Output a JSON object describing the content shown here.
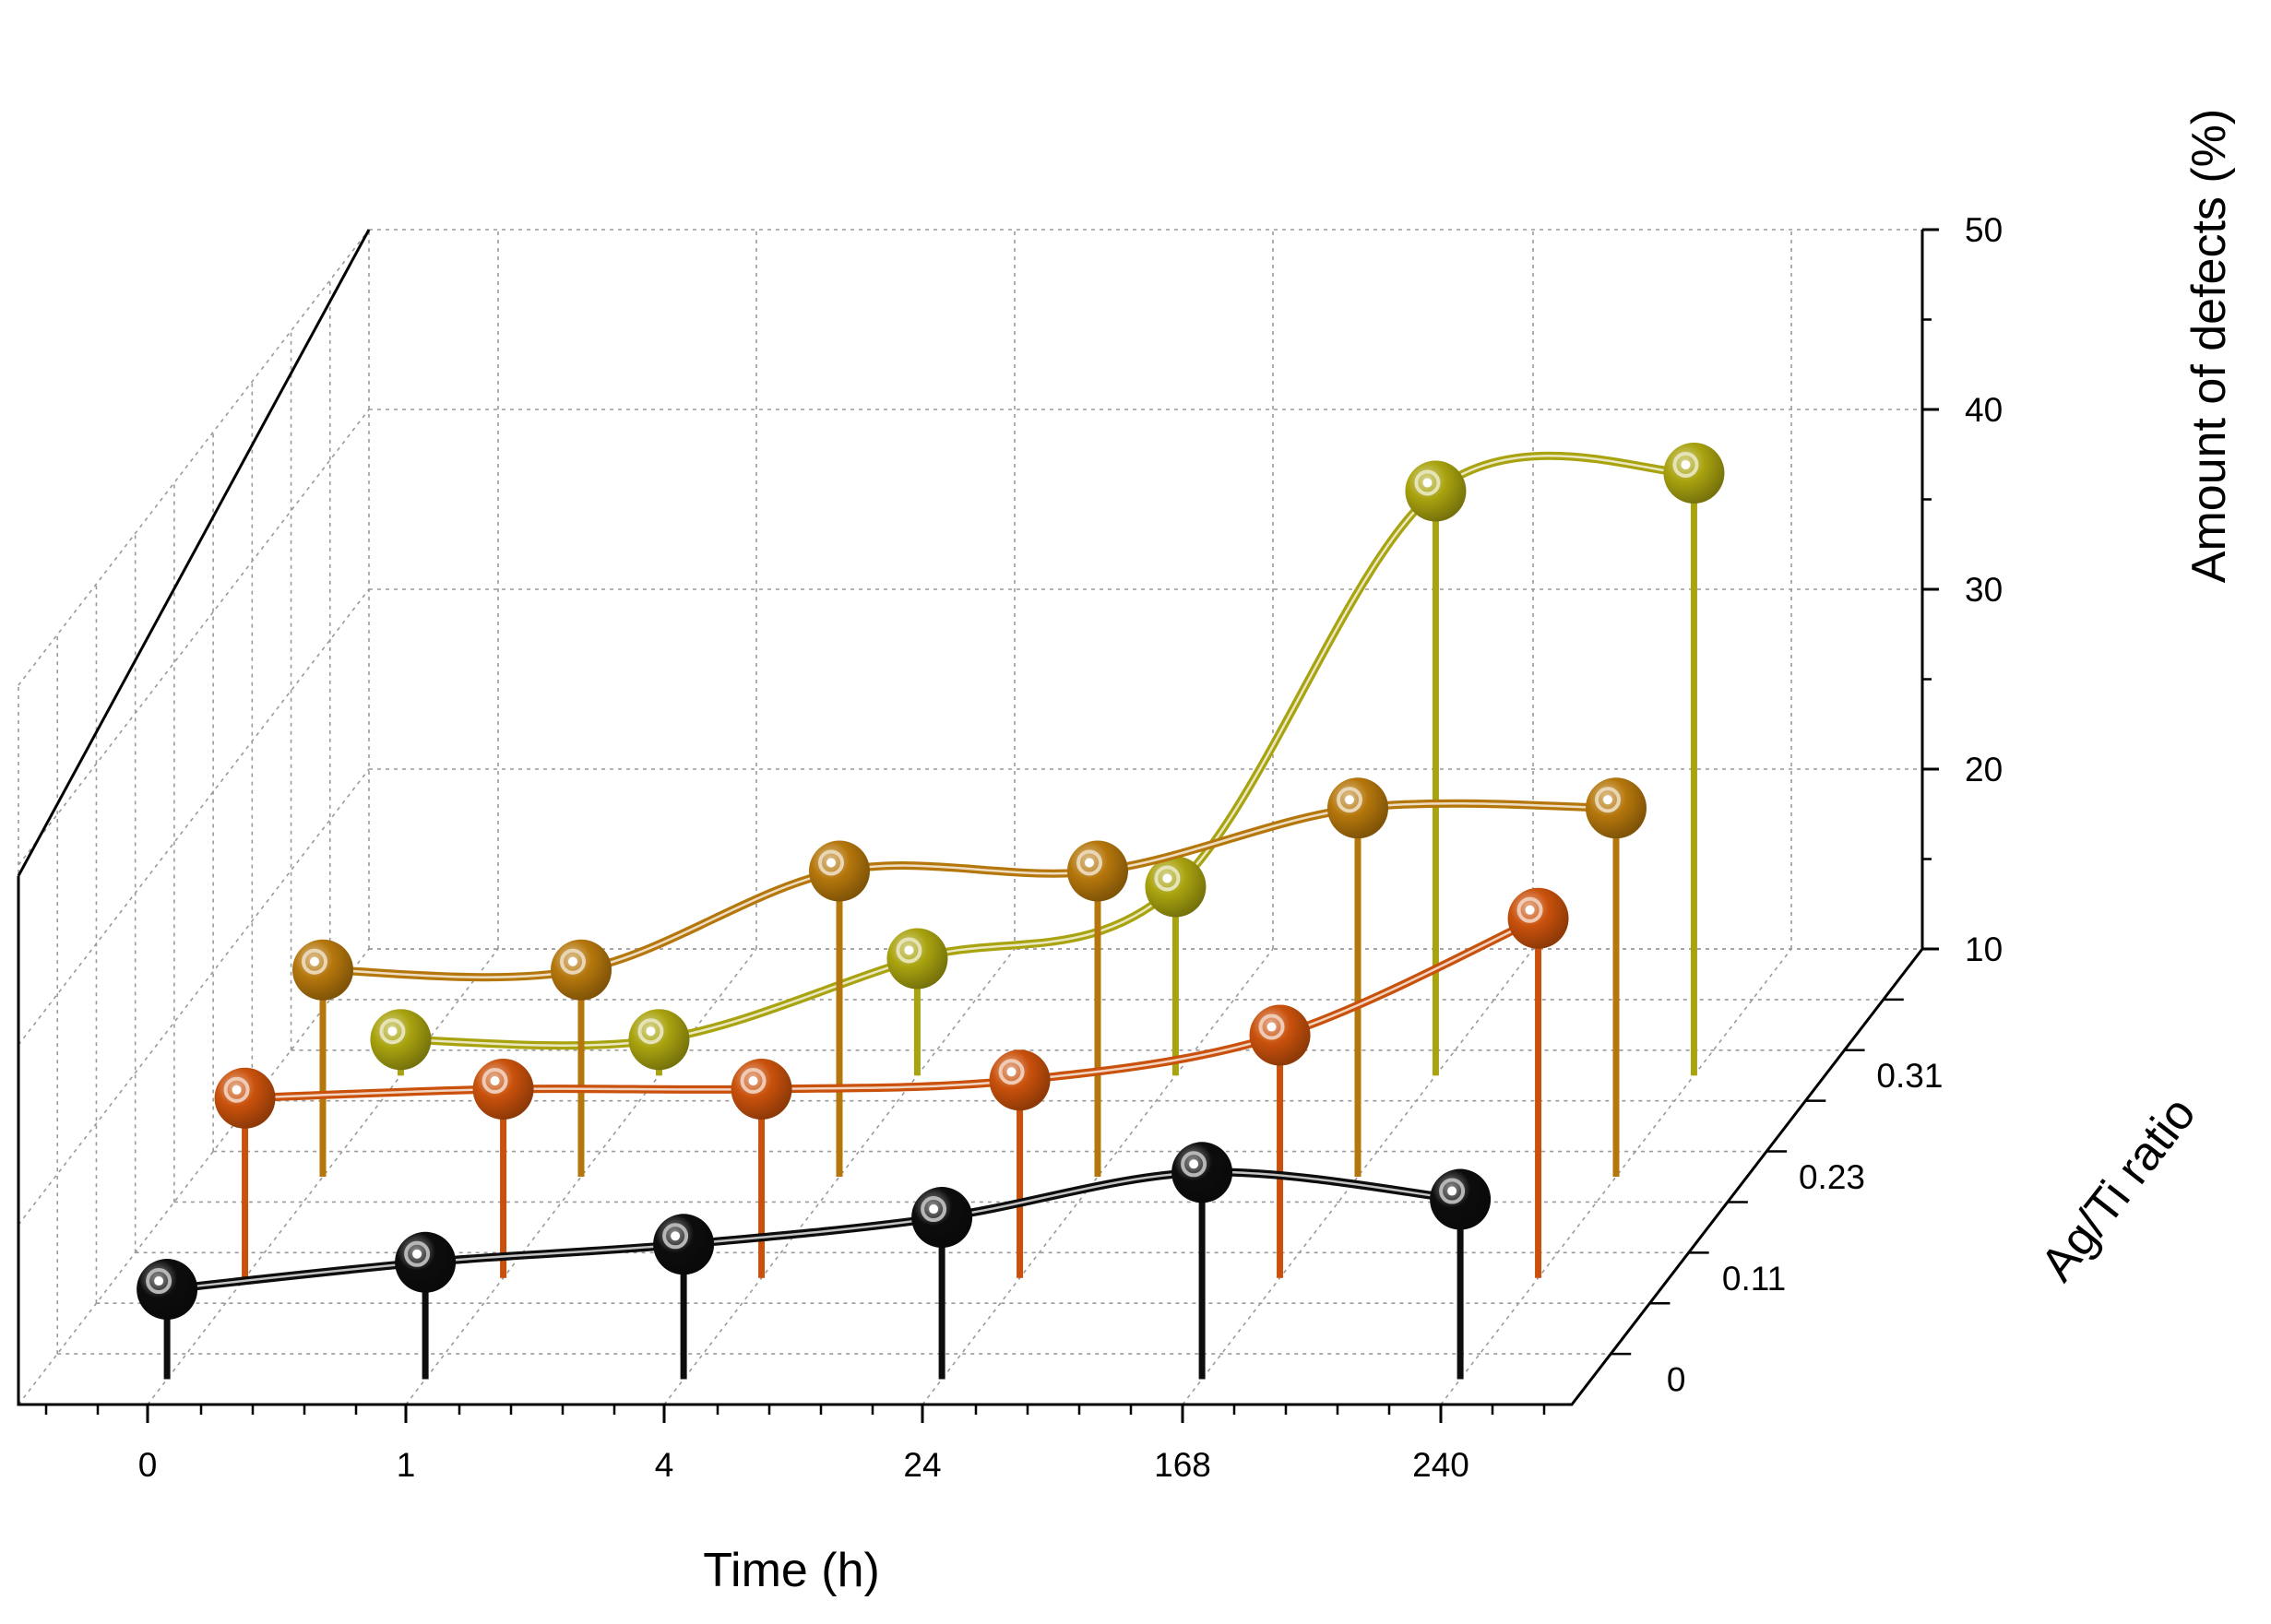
{
  "chart_data": {
    "type": "scatter",
    "subtype": "3d-stem-line",
    "xlabel": "Time (h)",
    "ylabel": "Ag/Ti ratio",
    "zlabel": "Amount of defects (%)",
    "categories": [
      "0",
      "1",
      "4",
      "24",
      "168",
      "240"
    ],
    "y_ticks": [
      "0",
      "0.11",
      "0.23",
      "0.31"
    ],
    "z_ticks": [
      "10",
      "20",
      "30",
      "40",
      "50"
    ],
    "zlim": [
      10,
      50
    ],
    "grid": true,
    "series": [
      {
        "name": "0",
        "color": "#0d0d0d",
        "values": [
          15.0,
          16.5,
          17.5,
          19.0,
          21.5,
          20.0
        ]
      },
      {
        "name": "0.11",
        "color": "#c9510c",
        "values": [
          20.0,
          20.5,
          20.5,
          21.0,
          23.5,
          30.0
        ]
      },
      {
        "name": "0.23",
        "color": "#b5770c",
        "values": [
          21.5,
          21.5,
          27.0,
          27.0,
          30.5,
          30.5
        ]
      },
      {
        "name": "0.31",
        "color": "#a9a30f",
        "values": [
          12.0,
          12.0,
          16.5,
          20.5,
          42.5,
          43.5
        ]
      }
    ]
  }
}
